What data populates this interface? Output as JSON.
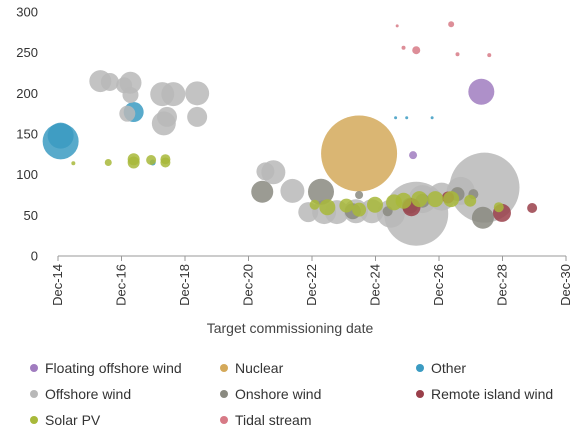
{
  "chart_data": {
    "type": "scatter",
    "title": "",
    "xlabel": "Target commissioning date",
    "ylabel": "",
    "ylim": [
      0,
      300
    ],
    "yticks": [
      0,
      50,
      100,
      150,
      200,
      250,
      300
    ],
    "xlim": [
      2014.917,
      2030.917
    ],
    "xticks": [
      "Dec-14",
      "Dec-16",
      "Dec-18",
      "Dec-20",
      "Dec-22",
      "Dec-24",
      "Dec-26",
      "Dec-28",
      "Dec-30"
    ],
    "grid": false,
    "legend_position": "bottom",
    "series": [
      {
        "name": "Floating offshore wind",
        "color": "#a07cbf",
        "points": [
          {
            "x": 2026.1,
            "y": 124,
            "r": 4
          },
          {
            "x": 2028.25,
            "y": 202,
            "r": 13
          }
        ]
      },
      {
        "name": "Nuclear",
        "color": "#d4a95a",
        "points": [
          {
            "x": 2024.4,
            "y": 126,
            "r": 38
          }
        ]
      },
      {
        "name": "Other",
        "color": "#3b9bc2",
        "points": [
          {
            "x": 2015.0,
            "y": 141,
            "r": 18
          },
          {
            "x": 2015.0,
            "y": 148,
            "r": 13
          },
          {
            "x": 2017.3,
            "y": 177,
            "r": 10
          },
          {
            "x": 2017.9,
            "y": 115,
            "r": 3
          },
          {
            "x": 2025.55,
            "y": 170,
            "r": 1.5
          },
          {
            "x": 2026.7,
            "y": 170,
            "r": 1.5
          },
          {
            "x": 2025.9,
            "y": 170,
            "r": 1.5
          }
        ]
      },
      {
        "name": "Offshore wind",
        "color": "#b8b8b8",
        "points": [
          {
            "x": 2016.25,
            "y": 215,
            "r": 11
          },
          {
            "x": 2016.55,
            "y": 214,
            "r": 9
          },
          {
            "x": 2017.0,
            "y": 210,
            "r": 8
          },
          {
            "x": 2017.2,
            "y": 213,
            "r": 11
          },
          {
            "x": 2017.2,
            "y": 198,
            "r": 8
          },
          {
            "x": 2017.1,
            "y": 175,
            "r": 8
          },
          {
            "x": 2018.2,
            "y": 199,
            "r": 12
          },
          {
            "x": 2018.55,
            "y": 199,
            "r": 12
          },
          {
            "x": 2019.3,
            "y": 200,
            "r": 12
          },
          {
            "x": 2018.25,
            "y": 163,
            "r": 12
          },
          {
            "x": 2018.35,
            "y": 171,
            "r": 10
          },
          {
            "x": 2019.3,
            "y": 171,
            "r": 10
          },
          {
            "x": 2021.45,
            "y": 104,
            "r": 9
          },
          {
            "x": 2021.7,
            "y": 103,
            "r": 12
          },
          {
            "x": 2022.3,
            "y": 80,
            "r": 12
          },
          {
            "x": 2022.8,
            "y": 54,
            "r": 10
          },
          {
            "x": 2023.3,
            "y": 54,
            "r": 12
          },
          {
            "x": 2023.7,
            "y": 54,
            "r": 12
          },
          {
            "x": 2024.3,
            "y": 55,
            "r": 12
          },
          {
            "x": 2024.8,
            "y": 55,
            "r": 12
          },
          {
            "x": 2025.4,
            "y": 52,
            "r": 14
          },
          {
            "x": 2026.2,
            "y": 52,
            "r": 32
          },
          {
            "x": 2026.4,
            "y": 70,
            "r": 14
          },
          {
            "x": 2027.0,
            "y": 73,
            "r": 14
          },
          {
            "x": 2027.6,
            "y": 80,
            "r": 14
          },
          {
            "x": 2028.35,
            "y": 84,
            "r": 35
          }
        ]
      },
      {
        "name": "Onshore wind",
        "color": "#8a8a80",
        "points": [
          {
            "x": 2021.35,
            "y": 79,
            "r": 11
          },
          {
            "x": 2023.2,
            "y": 79,
            "r": 13
          },
          {
            "x": 2024.2,
            "y": 55,
            "r": 8
          },
          {
            "x": 2024.4,
            "y": 75,
            "r": 4
          },
          {
            "x": 2025.3,
            "y": 55,
            "r": 5
          },
          {
            "x": 2026.0,
            "y": 62,
            "r": 8
          },
          {
            "x": 2026.4,
            "y": 68,
            "r": 7
          },
          {
            "x": 2027.5,
            "y": 76,
            "r": 7
          },
          {
            "x": 2028.0,
            "y": 76,
            "r": 5
          },
          {
            "x": 2028.3,
            "y": 47,
            "r": 11
          }
        ]
      },
      {
        "name": "Remote island wind",
        "color": "#9a3f4a",
        "points": [
          {
            "x": 2026.05,
            "y": 60,
            "r": 9
          },
          {
            "x": 2027.2,
            "y": 72,
            "r": 6
          },
          {
            "x": 2028.9,
            "y": 53,
            "r": 9
          },
          {
            "x": 2029.85,
            "y": 59,
            "r": 5
          }
        ]
      },
      {
        "name": "Solar PV",
        "color": "#a8b93a",
        "points": [
          {
            "x": 2015.4,
            "y": 114,
            "r": 2
          },
          {
            "x": 2016.5,
            "y": 115,
            "r": 3.5
          },
          {
            "x": 2017.3,
            "y": 115,
            "r": 6
          },
          {
            "x": 2017.3,
            "y": 119,
            "r": 6
          },
          {
            "x": 2017.85,
            "y": 118,
            "r": 5
          },
          {
            "x": 2018.3,
            "y": 115,
            "r": 5
          },
          {
            "x": 2018.3,
            "y": 119,
            "r": 5
          },
          {
            "x": 2023.0,
            "y": 63,
            "r": 5
          },
          {
            "x": 2023.4,
            "y": 60,
            "r": 8
          },
          {
            "x": 2024.0,
            "y": 62,
            "r": 7
          },
          {
            "x": 2024.4,
            "y": 57,
            "r": 7
          },
          {
            "x": 2024.9,
            "y": 63,
            "r": 8
          },
          {
            "x": 2025.5,
            "y": 66,
            "r": 8
          },
          {
            "x": 2025.8,
            "y": 68,
            "r": 8
          },
          {
            "x": 2026.3,
            "y": 70,
            "r": 8
          },
          {
            "x": 2026.8,
            "y": 70,
            "r": 8
          },
          {
            "x": 2027.3,
            "y": 70,
            "r": 8
          },
          {
            "x": 2027.9,
            "y": 68,
            "r": 6
          },
          {
            "x": 2028.8,
            "y": 60,
            "r": 5
          }
        ]
      },
      {
        "name": "Tidal stream",
        "color": "#d77a86",
        "points": [
          {
            "x": 2025.6,
            "y": 283,
            "r": 1.5
          },
          {
            "x": 2025.8,
            "y": 256,
            "r": 2
          },
          {
            "x": 2026.2,
            "y": 253,
            "r": 4
          },
          {
            "x": 2027.3,
            "y": 285,
            "r": 3
          },
          {
            "x": 2027.5,
            "y": 248,
            "r": 2
          },
          {
            "x": 2028.5,
            "y": 247,
            "r": 2
          }
        ]
      }
    ]
  }
}
